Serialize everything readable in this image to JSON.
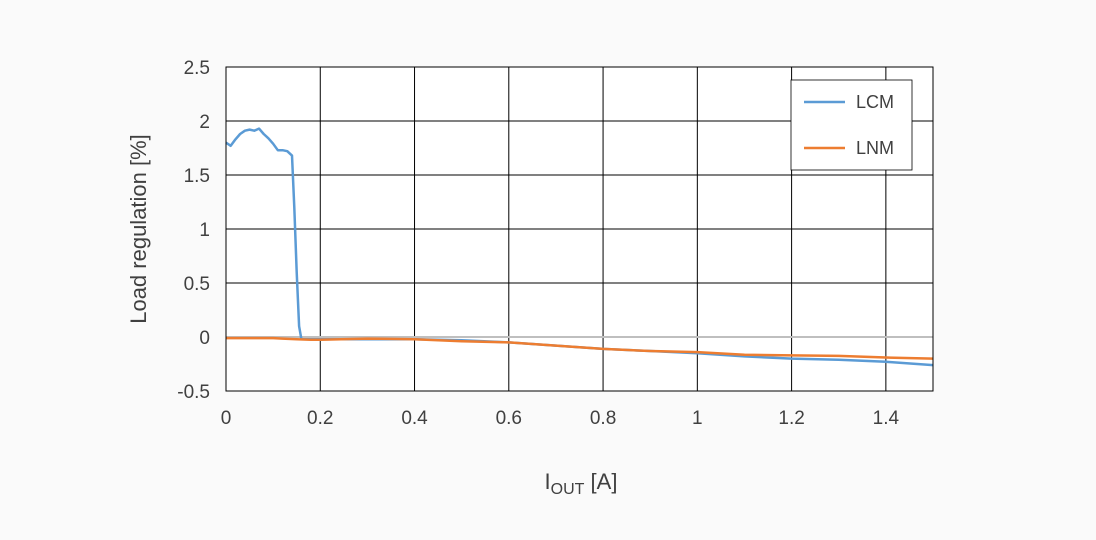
{
  "chart_data": {
    "type": "line",
    "title": "",
    "xlabel_main": "I",
    "xlabel_sub": "OUT",
    "xlabel_unit": " [A]",
    "ylabel": "Load regulation [%]",
    "xlim": [
      0,
      1.5
    ],
    "ylim": [
      -0.5,
      2.5
    ],
    "x_ticks": [
      0,
      0.2,
      0.4,
      0.6,
      0.8,
      1,
      1.2,
      1.4
    ],
    "x_tick_labels": [
      "0",
      "0.2",
      "0.4",
      "0.6",
      "0.8",
      "1",
      "1.2",
      "1.4"
    ],
    "y_ticks": [
      2.5,
      2,
      1.5,
      1,
      0.5,
      0,
      -0.5
    ],
    "y_tick_labels": [
      "2.5",
      "2",
      "1.5",
      "1",
      "0.5",
      "0",
      "-0.5"
    ],
    "x_grid": [
      0,
      0.2,
      0.4,
      0.6,
      0.8,
      1,
      1.2,
      1.4,
      1.5
    ],
    "y_grid": [
      2.5,
      2,
      1.5,
      1,
      0.5,
      -0.5
    ],
    "zero_line": 0,
    "grid": true,
    "legend_position": "top-right",
    "colors": {
      "background": "#fafafa",
      "plot_bg": "#ffffff",
      "grid": "#000000",
      "zero_line": "#bfbfbf"
    },
    "series": [
      {
        "name": "LCM",
        "color": "#5b9bd5",
        "points": [
          [
            0,
            1.8
          ],
          [
            0.01,
            1.77
          ],
          [
            0.02,
            1.83
          ],
          [
            0.03,
            1.88
          ],
          [
            0.04,
            1.91
          ],
          [
            0.05,
            1.92
          ],
          [
            0.06,
            1.91
          ],
          [
            0.07,
            1.93
          ],
          [
            0.08,
            1.88
          ],
          [
            0.09,
            1.84
          ],
          [
            0.1,
            1.79
          ],
          [
            0.11,
            1.73
          ],
          [
            0.12,
            1.73
          ],
          [
            0.13,
            1.72
          ],
          [
            0.14,
            1.68
          ],
          [
            0.145,
            1.2
          ],
          [
            0.15,
            0.6
          ],
          [
            0.155,
            0.1
          ],
          [
            0.16,
            -0.02
          ],
          [
            0.2,
            -0.02
          ],
          [
            0.3,
            -0.02
          ],
          [
            0.4,
            -0.02
          ],
          [
            0.45,
            -0.025
          ],
          [
            0.5,
            -0.03
          ],
          [
            0.6,
            -0.05
          ],
          [
            0.7,
            -0.08
          ],
          [
            0.8,
            -0.11
          ],
          [
            0.9,
            -0.13
          ],
          [
            1.0,
            -0.15
          ],
          [
            1.1,
            -0.18
          ],
          [
            1.2,
            -0.2
          ],
          [
            1.3,
            -0.21
          ],
          [
            1.4,
            -0.23
          ],
          [
            1.5,
            -0.26
          ]
        ]
      },
      {
        "name": "LNM",
        "color": "#ed7d31",
        "points": [
          [
            0,
            -0.01
          ],
          [
            0.02,
            -0.01
          ],
          [
            0.05,
            -0.01
          ],
          [
            0.08,
            -0.01
          ],
          [
            0.1,
            -0.01
          ],
          [
            0.12,
            -0.015
          ],
          [
            0.15,
            -0.02
          ],
          [
            0.18,
            -0.025
          ],
          [
            0.2,
            -0.025
          ],
          [
            0.3,
            -0.015
          ],
          [
            0.4,
            -0.02
          ],
          [
            0.5,
            -0.04
          ],
          [
            0.6,
            -0.05
          ],
          [
            0.7,
            -0.08
          ],
          [
            0.8,
            -0.11
          ],
          [
            0.9,
            -0.13
          ],
          [
            1.0,
            -0.14
          ],
          [
            1.1,
            -0.165
          ],
          [
            1.2,
            -0.17
          ],
          [
            1.3,
            -0.175
          ],
          [
            1.4,
            -0.19
          ],
          [
            1.5,
            -0.2
          ]
        ]
      }
    ]
  }
}
